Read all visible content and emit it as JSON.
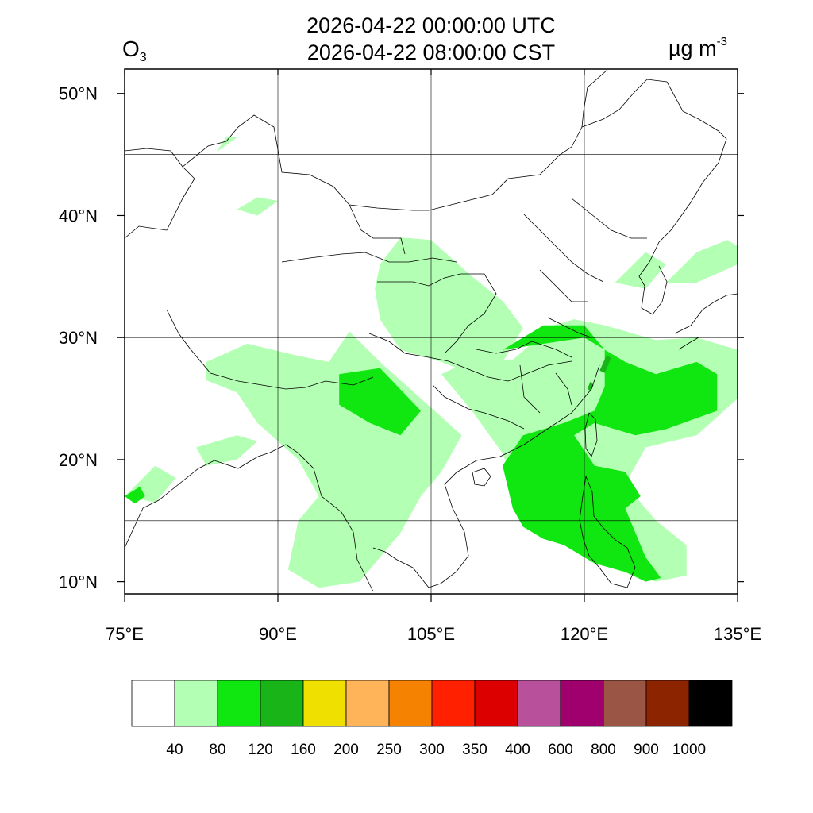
{
  "title": {
    "utc": "2026-04-22 00:00:00 UTC",
    "cst": "2026-04-22 08:00:00 CST"
  },
  "variable": {
    "base": "O",
    "sub": "3"
  },
  "unit": {
    "base": "µg m",
    "sup": "-3"
  },
  "axes": {
    "x_ticks": [
      "75°E",
      "90°E",
      "105°E",
      "120°E",
      "135°E"
    ],
    "y_ticks": [
      "50°N",
      "40°N",
      "30°N",
      "20°N",
      "10°N"
    ]
  },
  "colorbar": {
    "colors": [
      "#ffffff",
      "#b3ffb3",
      "#10e610",
      "#18b418",
      "#f0e000",
      "#ffb45a",
      "#f58200",
      "#ff2000",
      "#dc0000",
      "#b8509b",
      "#a0006e",
      "#9a5544",
      "#8c2400",
      "#000000"
    ],
    "labels": [
      "40",
      "80",
      "120",
      "160",
      "200",
      "250",
      "300",
      "350",
      "400",
      "600",
      "800",
      "900",
      "1000"
    ]
  },
  "chart_data": {
    "type": "heatmap",
    "variable": "O3",
    "unit": "µg m-3",
    "lon_range": [
      75,
      135
    ],
    "lat_range": [
      9,
      52
    ],
    "x_ticks": [
      75,
      90,
      105,
      120,
      135
    ],
    "y_ticks": [
      50,
      40,
      30,
      20,
      10
    ],
    "grid": true,
    "levels": [
      40,
      80,
      120,
      160,
      200,
      250,
      300,
      350,
      400,
      600,
      800,
      900,
      1000
    ],
    "regions": [
      {
        "level": 1,
        "desc": "40-80",
        "ring": [
          [
            75,
            17
          ],
          [
            78,
            19.5
          ],
          [
            80,
            18.5
          ],
          [
            78,
            16.5
          ]
        ]
      },
      {
        "level": 1,
        "ring": [
          [
            82,
            21
          ],
          [
            86,
            22
          ],
          [
            88,
            21.5
          ],
          [
            86,
            20
          ],
          [
            83,
            19.5
          ]
        ]
      },
      {
        "level": 1,
        "ring": [
          [
            83,
            28
          ],
          [
            87,
            29.5
          ],
          [
            92,
            28.5
          ],
          [
            95,
            28
          ],
          [
            97,
            30.5
          ],
          [
            100,
            28
          ],
          [
            104,
            25
          ],
          [
            108,
            22
          ],
          [
            106,
            19
          ],
          [
            104,
            17
          ],
          [
            102,
            14
          ],
          [
            98,
            10
          ],
          [
            94,
            9.5
          ],
          [
            91,
            11
          ],
          [
            92,
            15
          ],
          [
            94,
            17
          ],
          [
            92,
            20
          ],
          [
            88,
            23
          ],
          [
            86,
            25.5
          ],
          [
            83,
            26.5
          ]
        ]
      },
      {
        "level": 1,
        "ring": [
          [
            100,
            36
          ],
          [
            102,
            38.2
          ],
          [
            105,
            38
          ],
          [
            109,
            35
          ],
          [
            112,
            33
          ],
          [
            114,
            30.8
          ],
          [
            112,
            28
          ],
          [
            109,
            27
          ],
          [
            106,
            28
          ],
          [
            102,
            29
          ],
          [
            100,
            31.5
          ],
          [
            99.5,
            34
          ]
        ]
      },
      {
        "level": 1,
        "ring": [
          [
            106,
            27
          ],
          [
            109,
            24
          ],
          [
            112,
            20.5
          ],
          [
            114,
            16
          ],
          [
            116,
            14
          ],
          [
            120,
            12
          ],
          [
            123,
            11
          ],
          [
            127,
            10
          ],
          [
            130,
            10.5
          ],
          [
            130,
            13
          ],
          [
            127,
            15
          ],
          [
            124,
            18
          ],
          [
            126,
            21
          ],
          [
            131,
            22
          ],
          [
            135,
            25
          ],
          [
            135,
            29
          ],
          [
            131,
            30
          ],
          [
            127,
            29.8
          ],
          [
            122,
            31
          ],
          [
            119,
            31.5
          ],
          [
            117,
            31
          ],
          [
            113,
            28.2
          ],
          [
            109,
            28.2
          ]
        ]
      },
      {
        "level": 1,
        "ring": [
          [
            123,
            34.5
          ],
          [
            126,
            37
          ],
          [
            128,
            36
          ],
          [
            126,
            34
          ]
        ]
      },
      {
        "level": 1,
        "ring": [
          [
            128,
            34.5
          ],
          [
            131,
            37
          ],
          [
            134,
            38
          ],
          [
            135,
            37.5
          ],
          [
            135,
            36
          ],
          [
            131,
            34.5
          ]
        ]
      },
      {
        "level": 1,
        "ring": [
          [
            84,
            45.2
          ],
          [
            86,
            46.4
          ],
          [
            85,
            46.5
          ]
        ]
      },
      {
        "level": 1,
        "ring": [
          [
            86,
            40.5
          ],
          [
            88,
            41.5
          ],
          [
            90,
            41.2
          ],
          [
            88,
            40
          ]
        ]
      },
      {
        "level": 2,
        "desc": "80-120",
        "ring": [
          [
            96,
            27
          ],
          [
            100,
            27.5
          ],
          [
            104,
            24
          ],
          [
            102,
            22
          ],
          [
            99,
            23
          ],
          [
            96,
            24.5
          ]
        ]
      },
      {
        "level": 2,
        "ring": [
          [
            112,
            29
          ],
          [
            116,
            31
          ],
          [
            120,
            31
          ],
          [
            122,
            29
          ],
          [
            122,
            26
          ],
          [
            121,
            24
          ],
          [
            118,
            23
          ],
          [
            114,
            22
          ],
          [
            112,
            19.5
          ],
          [
            113,
            16
          ],
          [
            114,
            14.5
          ],
          [
            116,
            13.5
          ],
          [
            118,
            13
          ],
          [
            121,
            11.5
          ],
          [
            124,
            10.8
          ],
          [
            126,
            10
          ],
          [
            127.5,
            10.3
          ],
          [
            126,
            12
          ],
          [
            124,
            16
          ],
          [
            125.5,
            17
          ],
          [
            124,
            19
          ],
          [
            121,
            19.5
          ],
          [
            119,
            22
          ],
          [
            121,
            23
          ],
          [
            125,
            22
          ],
          [
            128,
            22.5
          ],
          [
            133,
            24
          ],
          [
            133,
            27
          ],
          [
            131,
            28
          ],
          [
            127,
            27
          ],
          [
            124,
            28
          ],
          [
            120,
            30
          ]
        ]
      },
      {
        "level": 2,
        "ring": [
          [
            75,
            17
          ],
          [
            76.5,
            17.8
          ],
          [
            77,
            17
          ],
          [
            76,
            16.4
          ]
        ]
      },
      {
        "level": 3,
        "desc": "120-160",
        "ring": [
          [
            121.5,
            27.3
          ],
          [
            122.2,
            28.6
          ],
          [
            122.6,
            28.3
          ],
          [
            122,
            27.1
          ]
        ]
      },
      {
        "level": 3,
        "ring": [
          [
            120.3,
            25.8
          ],
          [
            120.6,
            26.4
          ],
          [
            120.9,
            26.1
          ],
          [
            120.6,
            25.6
          ]
        ]
      }
    ]
  }
}
